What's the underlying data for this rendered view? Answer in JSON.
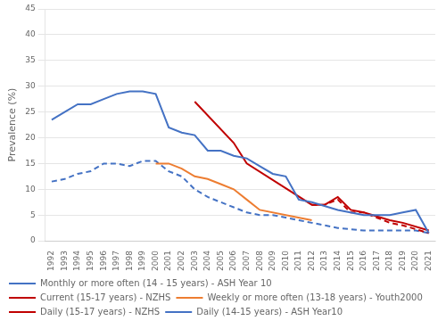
{
  "chart_data": {
    "type": "line",
    "y_label": "Prevalence (%)",
    "xlim": [
      1991.5,
      2021.5
    ],
    "xticks": [
      1992,
      1993,
      1994,
      1995,
      1996,
      1997,
      1998,
      1999,
      2000,
      2001,
      2002,
      2003,
      2004,
      2005,
      2006,
      2007,
      2008,
      2009,
      2010,
      2011,
      2012,
      2013,
      2014,
      2015,
      2016,
      2017,
      2018,
      2019,
      2020,
      2021
    ],
    "ylim": [
      0,
      45
    ],
    "yticks": [
      0,
      5,
      10,
      15,
      20,
      25,
      30,
      35,
      40,
      45
    ],
    "grid": "y",
    "legend": "bottom",
    "series": [
      {
        "name": "Monthly or more often (14 - 15 years) - ASH Year 10",
        "color": "#4472C4",
        "line_style": "solid",
        "x": [
          1992,
          1993,
          1994,
          1995,
          1996,
          1997,
          1998,
          1999,
          2000,
          2001,
          2002,
          2003,
          2004,
          2005,
          2006,
          2007,
          2008,
          2009,
          2010,
          2011,
          2012,
          2014,
          2016,
          2018,
          2019,
          2020,
          2021
        ],
        "values": [
          23.5,
          25.0,
          26.5,
          26.5,
          27.5,
          28.5,
          29.0,
          29.0,
          28.5,
          22.0,
          21.0,
          20.5,
          17.5,
          17.5,
          16.5,
          16.0,
          14.5,
          13.0,
          12.5,
          8.0,
          7.5,
          6.0,
          5.0,
          5.0,
          5.5,
          6.0,
          1.5
        ]
      },
      {
        "name": "Current (15-17 years) - NZHS",
        "color": "#C00000",
        "line_style": "solid",
        "x": [
          2003,
          2006,
          2007,
          2012,
          2013,
          2014,
          2015,
          2016,
          2018,
          2019,
          2021
        ],
        "values": [
          27.0,
          19.0,
          15.0,
          7.0,
          7.0,
          8.5,
          6.0,
          5.5,
          4.0,
          3.5,
          2.0
        ]
      },
      {
        "name": "Weekly or more often (13-18 years) - Youth2000",
        "color": "#ED7D31",
        "line_style": "solid",
        "x": [
          2000,
          2001,
          2002,
          2003,
          2004,
          2005,
          2006,
          2007,
          2008,
          2012
        ],
        "values": [
          15.0,
          15.0,
          14.0,
          12.5,
          12.0,
          11.0,
          10.0,
          8.0,
          6.0,
          4.0
        ]
      },
      {
        "name": "Daily (15-17 years) - NZHS",
        "color": "#C00000",
        "line_style": "dashed",
        "x": [
          2012,
          2013,
          2014,
          2015,
          2016,
          2018,
          2019,
          2021
        ],
        "values": [
          7.0,
          7.0,
          8.0,
          5.5,
          5.5,
          3.5,
          3.0,
          1.5
        ]
      },
      {
        "name": "Daily (14-15 years) - ASH Year10",
        "color": "#4472C4",
        "line_style": "dashed",
        "x": [
          1992,
          1993,
          1994,
          1995,
          1996,
          1997,
          1998,
          1999,
          2000,
          2001,
          2002,
          2003,
          2004,
          2005,
          2006,
          2007,
          2008,
          2009,
          2010,
          2011,
          2012,
          2014,
          2016,
          2018,
          2019,
          2020,
          2021
        ],
        "values": [
          11.5,
          12.0,
          13.0,
          13.5,
          15.0,
          15.0,
          14.5,
          15.5,
          15.5,
          13.5,
          12.5,
          10.0,
          8.5,
          7.5,
          6.5,
          5.5,
          5.0,
          5.0,
          4.5,
          4.0,
          3.5,
          2.5,
          2.0,
          2.0,
          2.0,
          2.0,
          1.5
        ]
      }
    ]
  }
}
